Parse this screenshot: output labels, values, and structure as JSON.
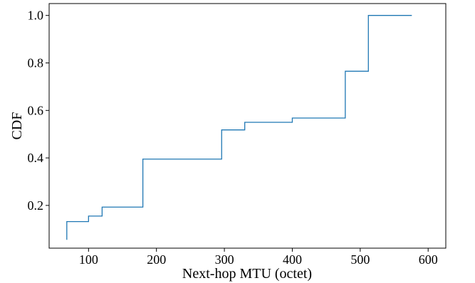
{
  "chart_data": {
    "type": "line",
    "step": "post",
    "title": "",
    "xlabel": "Next-hop MTU (octet)",
    "ylabel": "CDF",
    "xlim": [
      42,
      626
    ],
    "ylim": [
      0.02,
      1.05
    ],
    "x_ticks": [
      100,
      200,
      300,
      400,
      500,
      600
    ],
    "y_ticks": [
      0.2,
      0.4,
      0.6,
      0.8,
      1.0
    ],
    "x_tick_labels": [
      "100",
      "200",
      "300",
      "400",
      "500",
      "600"
    ],
    "y_tick_labels": [
      "0.2",
      "0.4",
      "0.6",
      "0.8",
      "1.0"
    ],
    "grid": false,
    "color": "#1f77b4",
    "series": [
      {
        "x": [
          68,
          68,
          100,
          120,
          180,
          296,
          330,
          400,
          478,
          512,
          576
        ],
        "y": [
          0.055,
          0.132,
          0.155,
          0.193,
          0.395,
          0.518,
          0.55,
          0.568,
          0.765,
          1.0,
          1.0
        ]
      }
    ]
  }
}
